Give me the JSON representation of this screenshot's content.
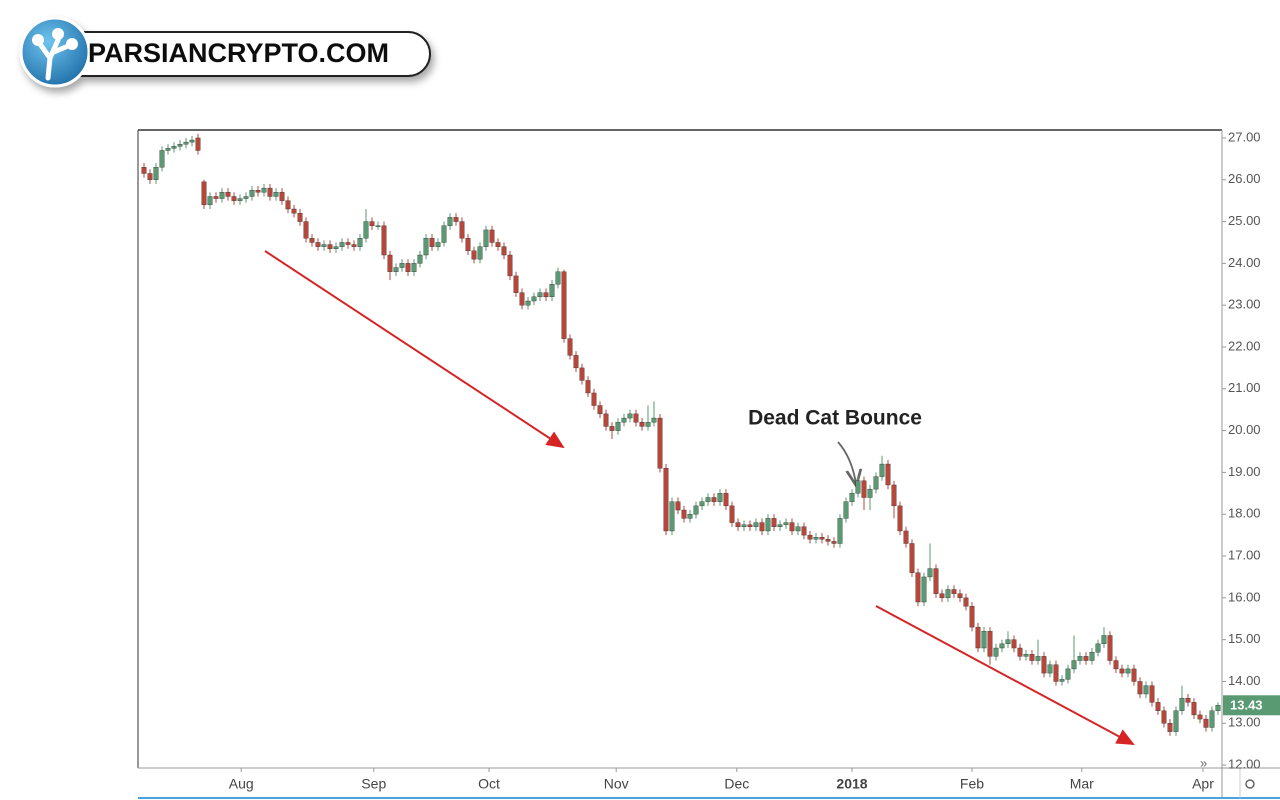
{
  "logo": {
    "text": "PARSIANCRYPTO.COM"
  },
  "chart_data": {
    "type": "candlestick",
    "annotations": [
      "Dead Cat Bounce"
    ],
    "up_color": "#5a9a72",
    "down_color": "#b8473a",
    "xlim": [
      -1,
      179.67
    ],
    "xticks": [
      {
        "value": 16.2,
        "label": "Aug"
      },
      {
        "value": 38.3,
        "label": "Sep"
      },
      {
        "value": 57.5,
        "label": "Oct"
      },
      {
        "value": 78.7,
        "label": "Nov"
      },
      {
        "value": 98.8,
        "label": "Dec"
      },
      {
        "value": 118,
        "label": "2018"
      },
      {
        "value": 138,
        "label": "Feb"
      },
      {
        "value": 156.3,
        "label": "Mar"
      },
      {
        "value": 176.5,
        "label": "Apr"
      }
    ],
    "ylim": [
      11.93,
      27.19
    ],
    "yticks": [
      {
        "value": 27,
        "label": "27.00"
      },
      {
        "value": 26,
        "label": "26.00"
      },
      {
        "value": 25,
        "label": "25.00"
      },
      {
        "value": 24,
        "label": "24.00"
      },
      {
        "value": 23,
        "label": "23.00"
      },
      {
        "value": 22,
        "label": "22.00"
      },
      {
        "value": 21,
        "label": "21.00"
      },
      {
        "value": 20,
        "label": "20.00"
      },
      {
        "value": 19,
        "label": "19.00"
      },
      {
        "value": 18,
        "label": "18.00"
      },
      {
        "value": 17,
        "label": "17.00"
      },
      {
        "value": 16,
        "label": "16.00"
      },
      {
        "value": 15,
        "label": "15.00"
      },
      {
        "value": 14,
        "label": "14.00"
      },
      {
        "value": 13,
        "label": "13.00"
      },
      {
        "value": 12,
        "label": "12.00"
      }
    ],
    "candles": [
      [
        26.3,
        26.4,
        26.05,
        26.15
      ],
      [
        26.15,
        26.25,
        25.9,
        26.0
      ],
      [
        26.0,
        26.4,
        25.9,
        26.3
      ],
      [
        26.3,
        26.8,
        26.2,
        26.7
      ],
      [
        26.7,
        26.85,
        26.6,
        26.75
      ],
      [
        26.75,
        26.9,
        26.65,
        26.8
      ],
      [
        26.8,
        26.95,
        26.7,
        26.85
      ],
      [
        26.85,
        27.0,
        26.75,
        26.9
      ],
      [
        26.9,
        27.05,
        26.8,
        26.95
      ],
      [
        27.0,
        27.1,
        26.6,
        26.7
      ],
      [
        25.95,
        26.0,
        25.3,
        25.4
      ],
      [
        25.4,
        25.7,
        25.3,
        25.6
      ],
      [
        25.6,
        25.7,
        25.45,
        25.55
      ],
      [
        25.55,
        25.8,
        25.45,
        25.7
      ],
      [
        25.7,
        25.8,
        25.5,
        25.6
      ],
      [
        25.6,
        25.7,
        25.4,
        25.5
      ],
      [
        25.5,
        25.65,
        25.4,
        25.55
      ],
      [
        25.55,
        25.7,
        25.45,
        25.6
      ],
      [
        25.6,
        25.85,
        25.5,
        25.75
      ],
      [
        25.75,
        25.85,
        25.6,
        25.7
      ],
      [
        25.7,
        25.9,
        25.6,
        25.8
      ],
      [
        25.8,
        25.9,
        25.5,
        25.6
      ],
      [
        25.6,
        25.8,
        25.5,
        25.7
      ],
      [
        25.7,
        25.8,
        25.4,
        25.5
      ],
      [
        25.5,
        25.6,
        25.2,
        25.3
      ],
      [
        25.3,
        25.4,
        25.1,
        25.2
      ],
      [
        25.2,
        25.3,
        24.9,
        25.0
      ],
      [
        25.0,
        25.1,
        24.5,
        24.6
      ],
      [
        24.6,
        24.7,
        24.4,
        24.5
      ],
      [
        24.5,
        24.6,
        24.3,
        24.4
      ],
      [
        24.4,
        24.55,
        24.3,
        24.45
      ],
      [
        24.45,
        24.55,
        24.25,
        24.35
      ],
      [
        24.35,
        24.5,
        24.25,
        24.4
      ],
      [
        24.4,
        24.6,
        24.3,
        24.5
      ],
      [
        24.5,
        24.6,
        24.35,
        24.45
      ],
      [
        24.45,
        24.55,
        24.3,
        24.4
      ],
      [
        24.4,
        24.7,
        24.3,
        24.6
      ],
      [
        24.6,
        25.3,
        24.5,
        25.0
      ],
      [
        25.0,
        25.1,
        24.8,
        24.9
      ],
      [
        24.9,
        25.0,
        24.8,
        24.9
      ],
      [
        24.9,
        25.0,
        24.1,
        24.2
      ],
      [
        24.2,
        24.3,
        23.6,
        23.8
      ],
      [
        23.8,
        24.0,
        23.7,
        23.9
      ],
      [
        23.9,
        24.1,
        23.8,
        24.0
      ],
      [
        24.0,
        24.1,
        23.7,
        23.8
      ],
      [
        23.8,
        24.1,
        23.7,
        24.0
      ],
      [
        24.0,
        24.3,
        23.9,
        24.2
      ],
      [
        24.2,
        24.7,
        24.1,
        24.6
      ],
      [
        24.6,
        24.7,
        24.3,
        24.4
      ],
      [
        24.4,
        24.6,
        24.3,
        24.5
      ],
      [
        24.5,
        25.0,
        24.4,
        24.9
      ],
      [
        24.9,
        25.2,
        24.8,
        25.1
      ],
      [
        25.1,
        25.2,
        24.9,
        25.0
      ],
      [
        25.0,
        25.1,
        24.5,
        24.6
      ],
      [
        24.6,
        24.7,
        24.2,
        24.3
      ],
      [
        24.3,
        24.4,
        24.0,
        24.1
      ],
      [
        24.1,
        24.5,
        24.0,
        24.4
      ],
      [
        24.4,
        24.9,
        24.3,
        24.8
      ],
      [
        24.8,
        24.9,
        24.4,
        24.5
      ],
      [
        24.5,
        24.6,
        24.3,
        24.4
      ],
      [
        24.4,
        24.5,
        24.1,
        24.2
      ],
      [
        24.2,
        24.3,
        23.6,
        23.7
      ],
      [
        23.7,
        23.8,
        23.2,
        23.3
      ],
      [
        23.3,
        23.4,
        22.9,
        23.0
      ],
      [
        23.0,
        23.2,
        22.9,
        23.1
      ],
      [
        23.1,
        23.3,
        23.0,
        23.2
      ],
      [
        23.2,
        23.4,
        23.1,
        23.3
      ],
      [
        23.3,
        23.4,
        23.1,
        23.2
      ],
      [
        23.2,
        23.6,
        23.1,
        23.5
      ],
      [
        23.5,
        23.9,
        23.4,
        23.8
      ],
      [
        23.8,
        23.85,
        22.1,
        22.2
      ],
      [
        22.2,
        22.3,
        21.7,
        21.8
      ],
      [
        21.8,
        21.9,
        21.4,
        21.5
      ],
      [
        21.5,
        21.6,
        21.1,
        21.2
      ],
      [
        21.2,
        21.3,
        20.8,
        20.9
      ],
      [
        20.9,
        21.0,
        20.5,
        20.6
      ],
      [
        20.6,
        20.7,
        20.3,
        20.4
      ],
      [
        20.4,
        20.5,
        20.0,
        20.1
      ],
      [
        20.1,
        20.2,
        19.8,
        20.0
      ],
      [
        20.0,
        20.3,
        19.9,
        20.2
      ],
      [
        20.2,
        20.4,
        20.1,
        20.3
      ],
      [
        20.3,
        20.5,
        20.2,
        20.4
      ],
      [
        20.4,
        20.5,
        20.1,
        20.2
      ],
      [
        20.2,
        20.3,
        20.0,
        20.1
      ],
      [
        20.1,
        20.6,
        20.0,
        20.2
      ],
      [
        20.2,
        20.7,
        20.1,
        20.3
      ],
      [
        20.3,
        20.4,
        19.0,
        19.1
      ],
      [
        19.1,
        19.2,
        17.5,
        17.6
      ],
      [
        17.6,
        18.4,
        17.5,
        18.3
      ],
      [
        18.3,
        18.4,
        18.0,
        18.1
      ],
      [
        18.1,
        18.2,
        17.8,
        17.9
      ],
      [
        17.9,
        18.1,
        17.8,
        18.0
      ],
      [
        18.0,
        18.3,
        17.9,
        18.2
      ],
      [
        18.2,
        18.4,
        18.1,
        18.3
      ],
      [
        18.3,
        18.5,
        18.2,
        18.4
      ],
      [
        18.4,
        18.5,
        18.2,
        18.3
      ],
      [
        18.3,
        18.6,
        18.2,
        18.5
      ],
      [
        18.5,
        18.6,
        18.1,
        18.2
      ],
      [
        18.2,
        18.3,
        17.7,
        17.8
      ],
      [
        17.8,
        17.9,
        17.6,
        17.7
      ],
      [
        17.7,
        17.85,
        17.6,
        17.75
      ],
      [
        17.75,
        17.85,
        17.6,
        17.7
      ],
      [
        17.7,
        17.9,
        17.6,
        17.8
      ],
      [
        17.8,
        17.9,
        17.5,
        17.6
      ],
      [
        17.6,
        18.0,
        17.5,
        17.9
      ],
      [
        17.9,
        18.0,
        17.6,
        17.7
      ],
      [
        17.7,
        17.85,
        17.6,
        17.75
      ],
      [
        17.75,
        17.9,
        17.65,
        17.8
      ],
      [
        17.8,
        17.9,
        17.5,
        17.6
      ],
      [
        17.6,
        17.8,
        17.5,
        17.7
      ],
      [
        17.7,
        17.8,
        17.4,
        17.5
      ],
      [
        17.5,
        17.6,
        17.3,
        17.4
      ],
      [
        17.4,
        17.55,
        17.3,
        17.45
      ],
      [
        17.45,
        17.55,
        17.3,
        17.4
      ],
      [
        17.4,
        17.5,
        17.25,
        17.35
      ],
      [
        17.35,
        17.45,
        17.2,
        17.3
      ],
      [
        17.3,
        18.0,
        17.2,
        17.9
      ],
      [
        17.9,
        18.4,
        17.8,
        18.3
      ],
      [
        18.3,
        18.6,
        18.2,
        18.5
      ],
      [
        18.5,
        18.9,
        18.4,
        18.8
      ],
      [
        18.8,
        18.9,
        18.1,
        18.4
      ],
      [
        18.4,
        18.7,
        18.1,
        18.6
      ],
      [
        18.6,
        19.0,
        18.5,
        18.9
      ],
      [
        18.9,
        19.4,
        18.8,
        19.2
      ],
      [
        19.2,
        19.3,
        18.6,
        18.7
      ],
      [
        18.7,
        18.8,
        17.9,
        18.2
      ],
      [
        18.2,
        18.3,
        17.5,
        17.6
      ],
      [
        17.6,
        17.7,
        17.2,
        17.3
      ],
      [
        17.3,
        17.4,
        16.5,
        16.6
      ],
      [
        16.6,
        16.7,
        15.8,
        15.9
      ],
      [
        15.9,
        16.6,
        15.8,
        16.5
      ],
      [
        16.5,
        17.3,
        16.4,
        16.7
      ],
      [
        16.7,
        16.8,
        16.0,
        16.1
      ],
      [
        16.1,
        16.2,
        15.9,
        16.0
      ],
      [
        16.0,
        16.3,
        15.9,
        16.2
      ],
      [
        16.2,
        16.3,
        16.0,
        16.1
      ],
      [
        16.1,
        16.2,
        15.9,
        16.0
      ],
      [
        16.0,
        16.1,
        15.7,
        15.8
      ],
      [
        15.8,
        15.9,
        15.2,
        15.3
      ],
      [
        15.3,
        15.4,
        14.7,
        14.8
      ],
      [
        14.8,
        15.3,
        14.7,
        15.2
      ],
      [
        15.2,
        15.3,
        14.4,
        14.6
      ],
      [
        14.6,
        14.9,
        14.5,
        14.8
      ],
      [
        14.8,
        15.0,
        14.7,
        14.9
      ],
      [
        14.9,
        15.2,
        14.8,
        15.0
      ],
      [
        15.0,
        15.1,
        14.7,
        14.8
      ],
      [
        14.8,
        14.9,
        14.5,
        14.6
      ],
      [
        14.6,
        14.75,
        14.5,
        14.65
      ],
      [
        14.65,
        14.75,
        14.4,
        14.5
      ],
      [
        14.5,
        15.0,
        14.4,
        14.6
      ],
      [
        14.6,
        14.7,
        14.1,
        14.2
      ],
      [
        14.2,
        14.5,
        14.1,
        14.4
      ],
      [
        14.4,
        14.5,
        13.9,
        14.0
      ],
      [
        14.0,
        14.15,
        13.9,
        14.05
      ],
      [
        14.05,
        14.4,
        13.95,
        14.3
      ],
      [
        14.3,
        15.1,
        14.2,
        14.5
      ],
      [
        14.5,
        14.7,
        14.4,
        14.6
      ],
      [
        14.6,
        14.7,
        14.4,
        14.5
      ],
      [
        14.5,
        14.8,
        14.4,
        14.7
      ],
      [
        14.7,
        15.0,
        14.6,
        14.9
      ],
      [
        14.9,
        15.3,
        14.8,
        15.1
      ],
      [
        15.1,
        15.2,
        14.4,
        14.5
      ],
      [
        14.5,
        14.6,
        14.2,
        14.3
      ],
      [
        14.3,
        14.4,
        14.1,
        14.2
      ],
      [
        14.2,
        14.4,
        14.1,
        14.3
      ],
      [
        14.3,
        14.4,
        13.9,
        14.0
      ],
      [
        14.0,
        14.1,
        13.6,
        13.7
      ],
      [
        13.7,
        14.0,
        13.6,
        13.9
      ],
      [
        13.9,
        14.0,
        13.4,
        13.5
      ],
      [
        13.5,
        13.6,
        13.2,
        13.3
      ],
      [
        13.3,
        13.4,
        12.9,
        13.0
      ],
      [
        13.0,
        13.1,
        12.7,
        12.8
      ],
      [
        12.8,
        13.4,
        12.7,
        13.3
      ],
      [
        13.3,
        13.9,
        13.2,
        13.6
      ],
      [
        13.6,
        13.7,
        13.4,
        13.5
      ],
      [
        13.5,
        13.6,
        13.1,
        13.2
      ],
      [
        13.2,
        13.3,
        13.0,
        13.1
      ],
      [
        13.1,
        13.2,
        12.8,
        12.9
      ],
      [
        12.9,
        13.4,
        12.8,
        13.3
      ],
      [
        13.3,
        13.5,
        13.2,
        13.43
      ]
    ]
  }
}
